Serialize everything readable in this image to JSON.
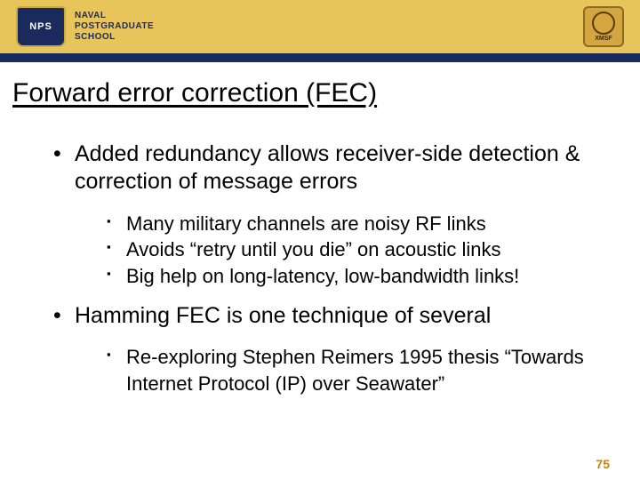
{
  "header": {
    "band_color": "#e8c55a",
    "bar_color": "#1a2a5c",
    "shield_label": "NPS",
    "org_line1": "NAVAL",
    "org_line2": "POSTGRADUATE",
    "org_line3": "SCHOOL",
    "badge_label": "XMSF"
  },
  "title": "Forward error correction (FEC)",
  "bullets": [
    {
      "text": "Added redundancy allows receiver-side detection & correction of message errors",
      "sub": [
        "Many military channels are noisy RF links",
        "Avoids “retry until you die” on acoustic links",
        "Big help on long-latency, low-bandwidth links!"
      ]
    },
    {
      "text": "Hamming FEC is one technique of several",
      "sub": [
        "Re-exploring Stephen Reimers 1995 thesis “Towards Internet Protocol (IP) over Seawater”"
      ]
    }
  ],
  "page_number": "75",
  "colors": {
    "text": "#000000",
    "page_num": "#c9850a"
  },
  "typography": {
    "title_fontsize": 30,
    "level1_fontsize": 25,
    "level2_fontsize": 22,
    "font_family": "Arial"
  }
}
